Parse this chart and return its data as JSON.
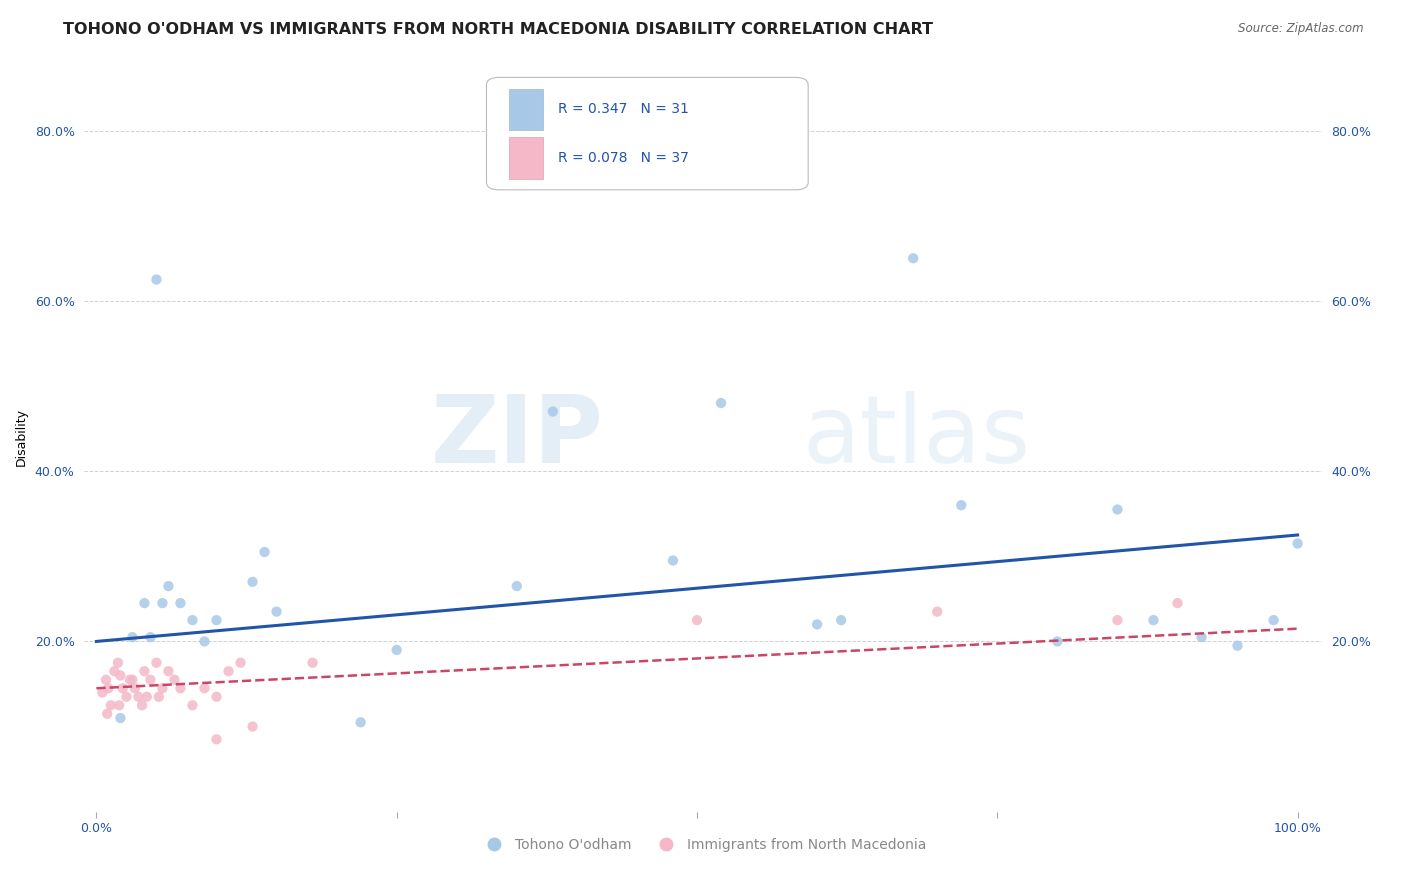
{
  "title": "TOHONO O'ODHAM VS IMMIGRANTS FROM NORTH MACEDONIA DISABILITY CORRELATION CHART",
  "source": "Source: ZipAtlas.com",
  "ylabel_label": "Disability",
  "legend_blue_R": "R = 0.347",
  "legend_blue_N": "N = 31",
  "legend_pink_R": "R = 0.078",
  "legend_pink_N": "N = 37",
  "blue_color": "#a8c8e8",
  "pink_color": "#f4b8c8",
  "blue_line_color": "#2255aa",
  "pink_line_color": "#cc4466",
  "watermark_zip": "ZIP",
  "watermark_atlas": "atlas",
  "blue_scatter_x": [
    0.02,
    0.06,
    0.08,
    0.04,
    0.1,
    0.13,
    0.14,
    0.09,
    0.22,
    0.07,
    0.03,
    0.35,
    0.38,
    0.48,
    0.52,
    0.62,
    0.68,
    0.72,
    0.85,
    0.88,
    0.92,
    0.95,
    0.98,
    1.0,
    0.05,
    0.045,
    0.055,
    0.15,
    0.25,
    0.6,
    0.8
  ],
  "blue_scatter_y": [
    0.11,
    0.265,
    0.225,
    0.245,
    0.225,
    0.27,
    0.305,
    0.2,
    0.105,
    0.245,
    0.205,
    0.265,
    0.47,
    0.295,
    0.48,
    0.225,
    0.65,
    0.36,
    0.355,
    0.225,
    0.205,
    0.195,
    0.225,
    0.315,
    0.625,
    0.205,
    0.245,
    0.235,
    0.19,
    0.22,
    0.2
  ],
  "pink_scatter_x": [
    0.005,
    0.008,
    0.01,
    0.012,
    0.015,
    0.018,
    0.009,
    0.02,
    0.022,
    0.025,
    0.028,
    0.019,
    0.032,
    0.035,
    0.038,
    0.03,
    0.042,
    0.045,
    0.04,
    0.05,
    0.055,
    0.052,
    0.06,
    0.065,
    0.07,
    0.08,
    0.09,
    0.1,
    0.11,
    0.12,
    0.13,
    0.18,
    0.5,
    0.7,
    0.85,
    0.9,
    0.1
  ],
  "pink_scatter_y": [
    0.14,
    0.155,
    0.145,
    0.125,
    0.165,
    0.175,
    0.115,
    0.16,
    0.145,
    0.135,
    0.155,
    0.125,
    0.145,
    0.135,
    0.125,
    0.155,
    0.135,
    0.155,
    0.165,
    0.175,
    0.145,
    0.135,
    0.165,
    0.155,
    0.145,
    0.125,
    0.145,
    0.135,
    0.165,
    0.175,
    0.1,
    0.175,
    0.225,
    0.235,
    0.225,
    0.245,
    0.085
  ],
  "blue_line_x": [
    0.0,
    1.0
  ],
  "blue_line_y": [
    0.2,
    0.325
  ],
  "pink_line_x": [
    0.0,
    1.0
  ],
  "pink_line_y": [
    0.145,
    0.215
  ],
  "xlim": [
    -0.01,
    1.02
  ],
  "ylim": [
    0.0,
    0.88
  ],
  "yticks": [
    0.2,
    0.4,
    0.6,
    0.8
  ],
  "ytick_labels": [
    "20.0%",
    "40.0%",
    "60.0%",
    "80.0%"
  ],
  "xtick_positions": [
    0.0,
    0.25,
    0.5,
    0.75,
    1.0
  ],
  "xtick_labels": [
    "0.0%",
    "",
    "",
    "",
    "100.0%"
  ],
  "grid_color": "#cccccc",
  "background_color": "#ffffff",
  "title_fontsize": 11.5,
  "axis_label_fontsize": 9,
  "tick_fontsize": 9,
  "scatter_size": 55,
  "legend_text_color": "#2255aa",
  "bottom_legend_color": "#888888"
}
